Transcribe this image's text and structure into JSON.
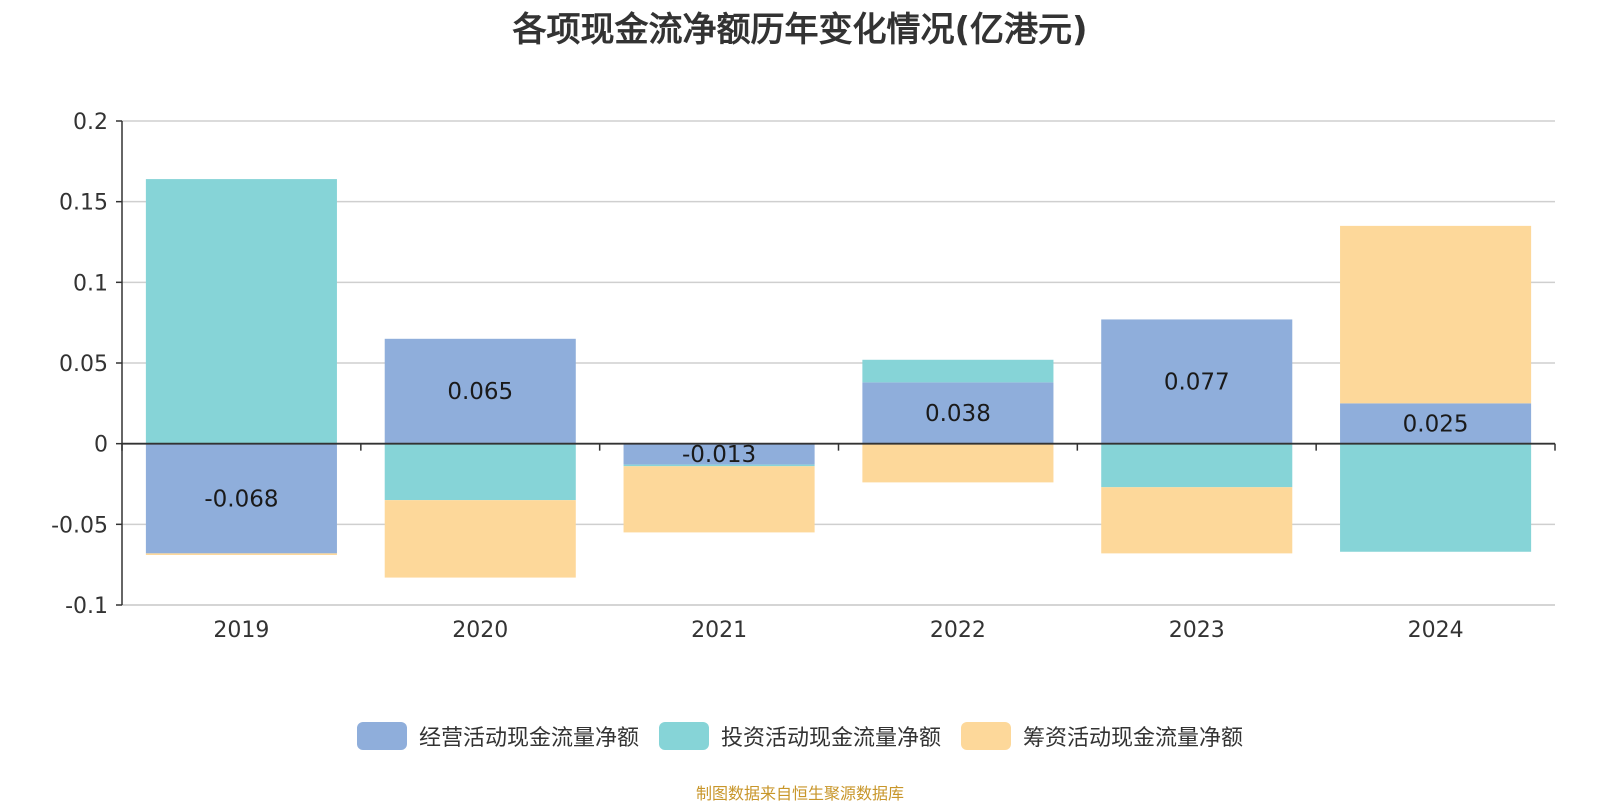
{
  "chart_data": {
    "type": "bar",
    "stacked": true,
    "title": "各项现金流净额历年变化情况(亿港元)",
    "categories": [
      "2019",
      "2020",
      "2021",
      "2022",
      "2023",
      "2024"
    ],
    "ylim": [
      -0.1,
      0.2
    ],
    "yticks": [
      0.2,
      0.15,
      0.1,
      0.05,
      0,
      -0.05,
      -0.1
    ],
    "ytick_labels": [
      "0.2",
      "0.15",
      "0.1",
      "0.05",
      "0",
      "-0.05",
      "-0.1"
    ],
    "grid": true,
    "legend_position": "bottom",
    "series": [
      {
        "name": "经营活动现金流量净额",
        "color": "#8FAEDB",
        "values": [
          -0.068,
          0.065,
          -0.013,
          0.038,
          0.077,
          0.025
        ],
        "labels": [
          "-0.068",
          "0.065",
          "-0.013",
          "0.038",
          "0.077",
          "0.025"
        ]
      },
      {
        "name": "投资活动现金流量净额",
        "color": "#86D4D7",
        "values": [
          0.164,
          -0.035,
          -0.001,
          0.014,
          -0.027,
          -0.067
        ]
      },
      {
        "name": "筹资活动现金流量净额",
        "color": "#FDD89A",
        "values": [
          -0.001,
          -0.048,
          -0.041,
          -0.024,
          -0.041,
          0.11
        ]
      }
    ]
  },
  "source_text": "制图数据来自恒生聚源数据库"
}
